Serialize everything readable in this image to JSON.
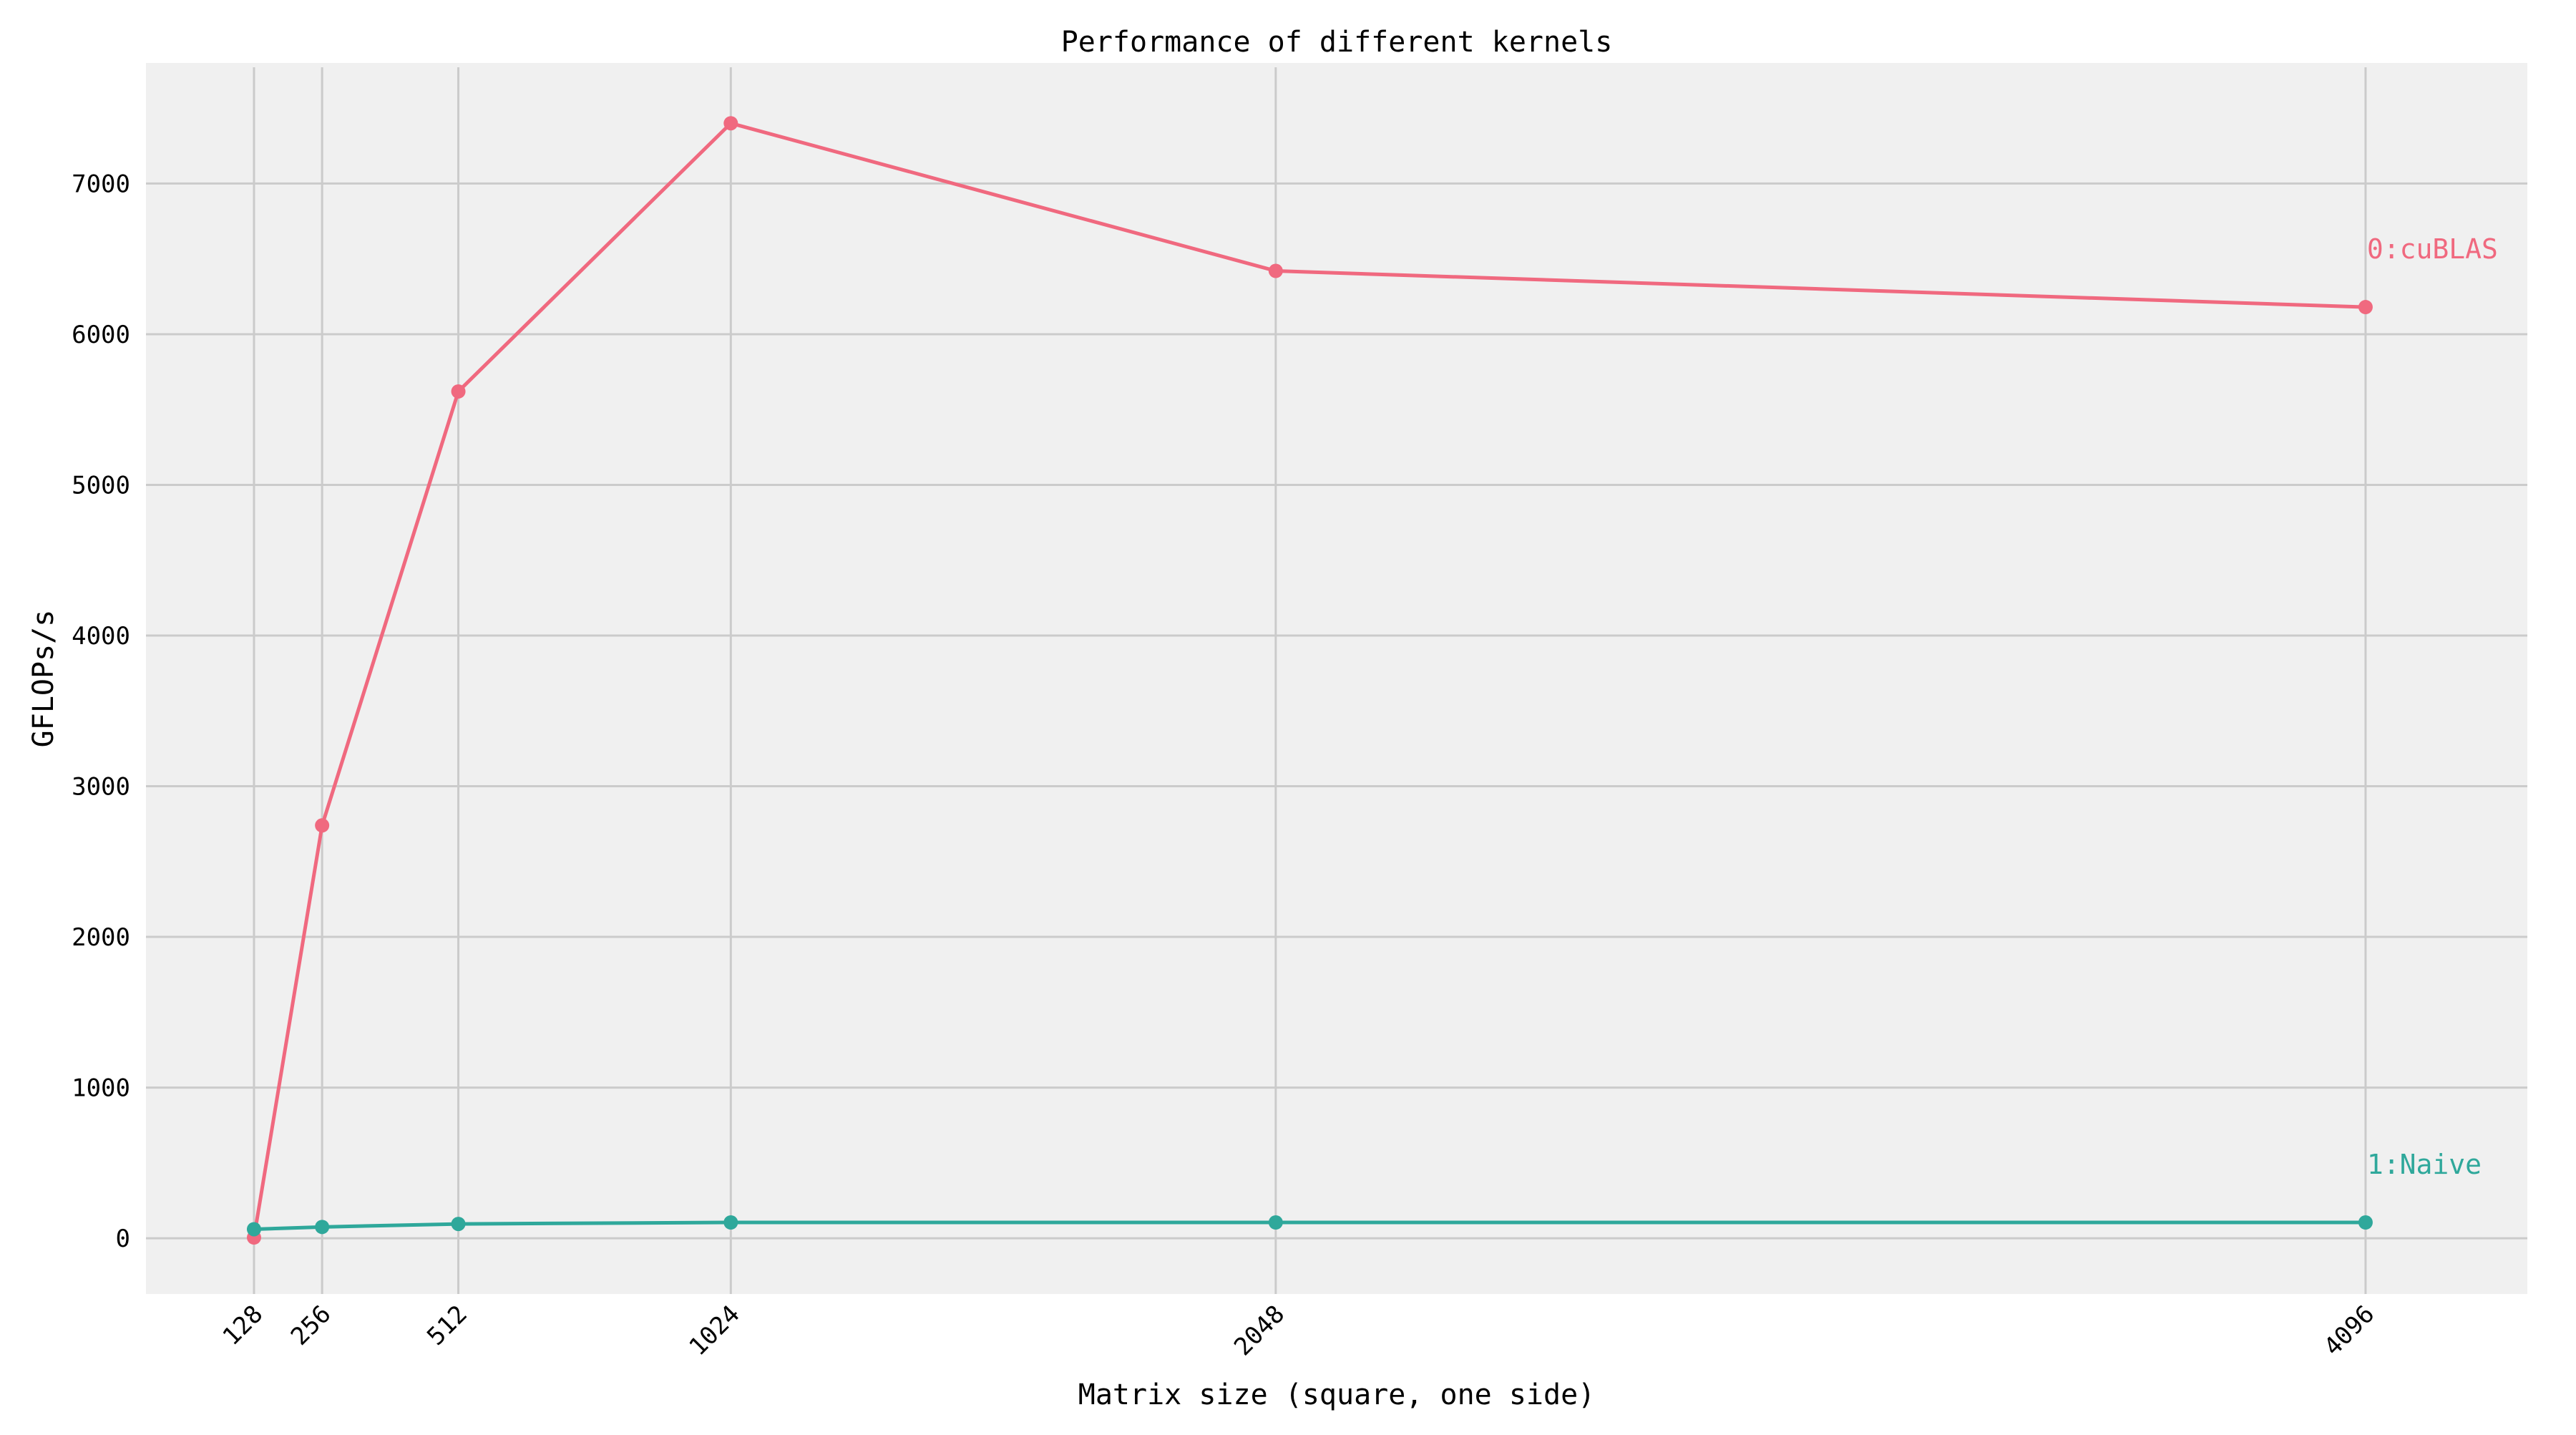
{
  "chart_data": {
    "type": "line",
    "title": "Performance of different kernels",
    "xlabel": "Matrix size (square, one side)",
    "ylabel": "GFLOPs/s",
    "x": [
      128,
      256,
      512,
      1024,
      2048,
      4096
    ],
    "x_tick_labels": [
      "128",
      "256",
      "512",
      "1024",
      "2048",
      "4096"
    ],
    "xlim": [
      -75,
      4400
    ],
    "ylim": [
      -370,
      7800
    ],
    "y_ticks": [
      0,
      1000,
      2000,
      3000,
      4000,
      5000,
      6000,
      7000
    ],
    "y_tick_labels": [
      "0",
      "1000",
      "2000",
      "3000",
      "4000",
      "5000",
      "6000",
      "7000"
    ],
    "grid": true,
    "legend": "inline labels at line ends",
    "series": [
      {
        "name": "0:cuBLAS",
        "color": "#f0697f",
        "values": [
          5,
          2740,
          5620,
          7400,
          6420,
          6180
        ]
      },
      {
        "name": "1:Naive",
        "color": "#2fa89b",
        "values": [
          60,
          75,
          95,
          105,
          105,
          105
        ]
      }
    ],
    "plot_background": "#f0f0f0",
    "grid_color": "#cbcbcb"
  }
}
